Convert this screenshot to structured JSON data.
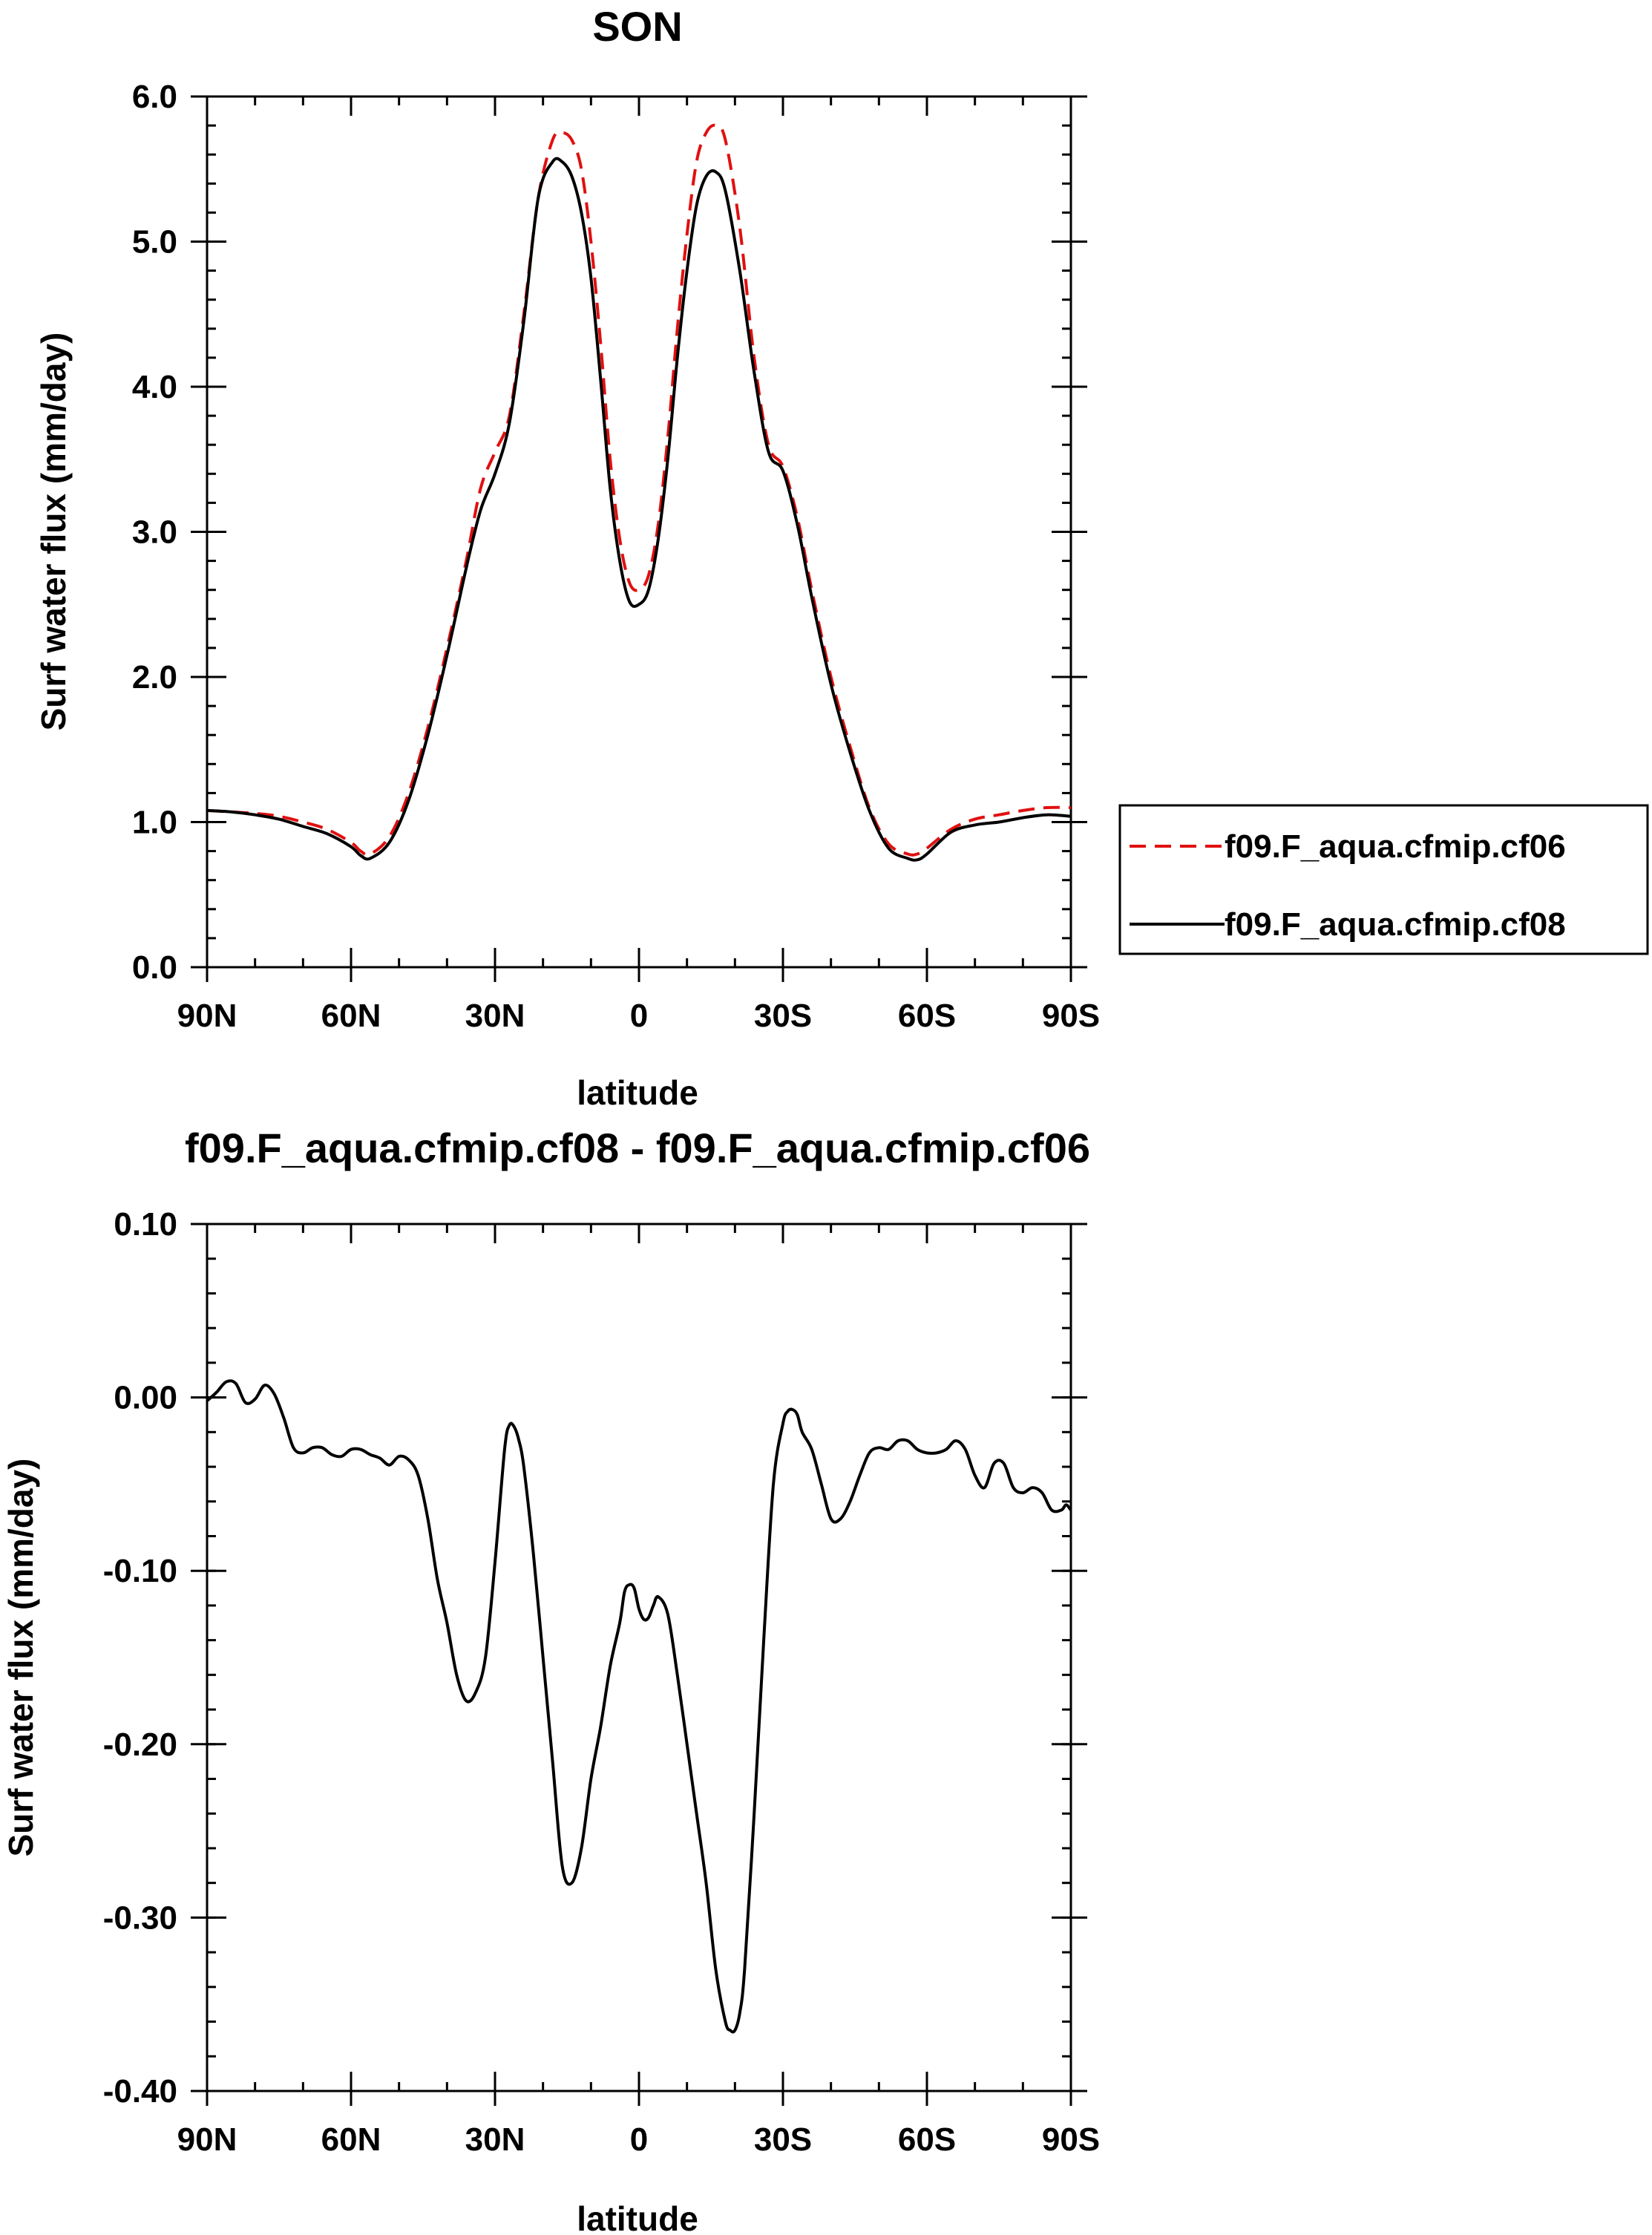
{
  "chart_data": [
    {
      "type": "line",
      "title": "SON",
      "xlabel": "latitude",
      "ylabel": "Surf water flux (mm/day)",
      "x_ticks": [
        {
          "value": 90,
          "label": "90N"
        },
        {
          "value": 60,
          "label": "60N"
        },
        {
          "value": 30,
          "label": "30N"
        },
        {
          "value": 0,
          "label": "0"
        },
        {
          "value": -30,
          "label": "30S"
        },
        {
          "value": -60,
          "label": "60S"
        },
        {
          "value": -90,
          "label": "90S"
        }
      ],
      "y_ticks": [
        {
          "value": 0.0,
          "label": "0.0"
        },
        {
          "value": 1.0,
          "label": "1.0"
        },
        {
          "value": 2.0,
          "label": "2.0"
        },
        {
          "value": 3.0,
          "label": "3.0"
        },
        {
          "value": 4.0,
          "label": "4.0"
        },
        {
          "value": 5.0,
          "label": "5.0"
        },
        {
          "value": 6.0,
          "label": "6.0"
        }
      ],
      "xlim": [
        90,
        -90
      ],
      "ylim": [
        0,
        6
      ],
      "grid": false,
      "legend_position": "outside-right",
      "x": [
        90,
        85,
        80,
        75,
        70,
        65,
        60,
        58,
        56,
        52,
        48,
        44,
        40,
        36,
        33,
        30,
        27,
        24,
        21,
        18,
        16,
        14,
        12,
        10,
        8,
        6,
        4,
        2,
        0,
        -2,
        -4,
        -6,
        -8,
        -10,
        -12,
        -14,
        -16,
        -18,
        -21,
        -24,
        -27,
        -30,
        -33,
        -36,
        -40,
        -44,
        -48,
        -52,
        -56,
        -58,
        -60,
        -65,
        -70,
        -75,
        -80,
        -85,
        -90
      ],
      "series": [
        {
          "name": "f09.F_aqua.cfmip.cf06",
          "color": "#e01010",
          "dash": "dashed",
          "values": [
            1.08,
            1.07,
            1.06,
            1.04,
            1.0,
            0.95,
            0.86,
            0.8,
            0.78,
            0.9,
            1.2,
            1.65,
            2.2,
            2.8,
            3.3,
            3.55,
            3.8,
            4.5,
            5.3,
            5.7,
            5.75,
            5.7,
            5.5,
            5.0,
            4.3,
            3.5,
            2.95,
            2.65,
            2.6,
            2.7,
            3.05,
            3.65,
            4.4,
            5.05,
            5.55,
            5.75,
            5.8,
            5.7,
            5.1,
            4.2,
            3.6,
            3.45,
            3.1,
            2.6,
            2.0,
            1.52,
            1.1,
            0.85,
            0.78,
            0.78,
            0.82,
            0.95,
            1.02,
            1.05,
            1.08,
            1.1,
            1.1
          ]
        },
        {
          "name": "f09.F_aqua.cfmip.cf08",
          "color": "#000000",
          "dash": "solid",
          "values": [
            1.08,
            1.07,
            1.05,
            1.02,
            0.97,
            0.92,
            0.83,
            0.77,
            0.75,
            0.86,
            1.15,
            1.6,
            2.15,
            2.75,
            3.15,
            3.4,
            3.75,
            4.45,
            5.3,
            5.55,
            5.55,
            5.45,
            5.2,
            4.75,
            4.05,
            3.3,
            2.8,
            2.52,
            2.5,
            2.6,
            2.95,
            3.5,
            4.2,
            4.8,
            5.25,
            5.45,
            5.48,
            5.35,
            4.8,
            4.1,
            3.55,
            3.42,
            3.05,
            2.55,
            1.95,
            1.48,
            1.08,
            0.82,
            0.75,
            0.74,
            0.78,
            0.93,
            0.98,
            1.0,
            1.03,
            1.05,
            1.04
          ]
        }
      ]
    },
    {
      "type": "line",
      "title": "f09.F_aqua.cfmip.cf08 - f09.F_aqua.cfmip.cf06",
      "xlabel": "latitude",
      "ylabel": "Surf water flux (mm/day)",
      "x_ticks": [
        {
          "value": 90,
          "label": "90N"
        },
        {
          "value": 60,
          "label": "60N"
        },
        {
          "value": 30,
          "label": "30N"
        },
        {
          "value": 0,
          "label": "0"
        },
        {
          "value": -30,
          "label": "30S"
        },
        {
          "value": -60,
          "label": "60S"
        },
        {
          "value": -90,
          "label": "90S"
        }
      ],
      "y_ticks": [
        {
          "value": -0.4,
          "label": "-0.40"
        },
        {
          "value": -0.3,
          "label": "-0.30"
        },
        {
          "value": -0.2,
          "label": "-0.20"
        },
        {
          "value": -0.1,
          "label": "-0.10"
        },
        {
          "value": 0.0,
          "label": "0.00"
        },
        {
          "value": 0.1,
          "label": "0.10"
        }
      ],
      "xlim": [
        90,
        -90
      ],
      "ylim": [
        -0.4,
        0.1
      ],
      "grid": false,
      "x": [
        90,
        88,
        86,
        84,
        82,
        80,
        78,
        76,
        74,
        72,
        70,
        68,
        66,
        64,
        62,
        60,
        58,
        56,
        54,
        52,
        50,
        48,
        46,
        44,
        42,
        40,
        38,
        36,
        34,
        32,
        30,
        28,
        27,
        26,
        25,
        24,
        22,
        20,
        18,
        16,
        14,
        12,
        10,
        8,
        6,
        4,
        3,
        2,
        1,
        0,
        -1,
        -2,
        -3,
        -4,
        -6,
        -8,
        -10,
        -12,
        -14,
        -16,
        -18,
        -19,
        -20,
        -21,
        -22,
        -24,
        -26,
        -28,
        -30,
        -31,
        -32,
        -33,
        -34,
        -36,
        -38,
        -40,
        -42,
        -44,
        -46,
        -48,
        -50,
        -52,
        -54,
        -56,
        -58,
        -60,
        -62,
        -64,
        -66,
        -68,
        -70,
        -72,
        -74,
        -76,
        -78,
        -80,
        -82,
        -84,
        -86,
        -88,
        -89,
        -90
      ],
      "series": [
        {
          "name": "",
          "color": "#000000",
          "dash": "solid",
          "values": [
            -0.002,
            0.003,
            0.009,
            0.008,
            -0.003,
            -0.001,
            0.007,
            0.002,
            -0.012,
            -0.029,
            -0.032,
            -0.029,
            -0.029,
            -0.033,
            -0.034,
            -0.03,
            -0.03,
            -0.033,
            -0.035,
            -0.039,
            -0.034,
            -0.036,
            -0.045,
            -0.07,
            -0.105,
            -0.13,
            -0.16,
            -0.175,
            -0.17,
            -0.15,
            -0.095,
            -0.03,
            -0.016,
            -0.017,
            -0.025,
            -0.04,
            -0.09,
            -0.15,
            -0.21,
            -0.27,
            -0.28,
            -0.26,
            -0.22,
            -0.19,
            -0.155,
            -0.13,
            -0.112,
            -0.108,
            -0.11,
            -0.122,
            -0.128,
            -0.127,
            -0.12,
            -0.115,
            -0.125,
            -0.16,
            -0.2,
            -0.24,
            -0.28,
            -0.33,
            -0.36,
            -0.365,
            -0.365,
            -0.355,
            -0.33,
            -0.24,
            -0.14,
            -0.05,
            -0.015,
            -0.008,
            -0.007,
            -0.01,
            -0.02,
            -0.03,
            -0.05,
            -0.07,
            -0.07,
            -0.06,
            -0.045,
            -0.032,
            -0.029,
            -0.03,
            -0.025,
            -0.025,
            -0.03,
            -0.032,
            -0.032,
            -0.03,
            -0.025,
            -0.03,
            -0.045,
            -0.052,
            -0.038,
            -0.038,
            -0.052,
            -0.055,
            -0.052,
            -0.055,
            -0.065,
            -0.065,
            -0.062,
            -0.065
          ]
        }
      ]
    }
  ]
}
